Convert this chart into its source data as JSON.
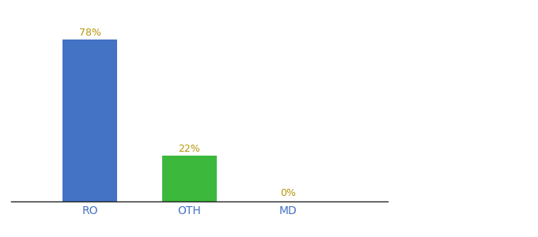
{
  "categories": [
    "RO",
    "OTH",
    "MD"
  ],
  "values": [
    78,
    22,
    0
  ],
  "bar_colors": [
    "#4472C4",
    "#3CB93C",
    "#4472C4"
  ],
  "label_texts": [
    "78%",
    "22%",
    "0%"
  ],
  "label_color": "#b8960c",
  "xlabel_color": "#4472C4",
  "background_color": "#ffffff",
  "ylim": [
    0,
    88
  ],
  "bar_width": 0.55,
  "xlim": [
    -0.3,
    3.5
  ],
  "x_positions": [
    0.5,
    1.5,
    2.5
  ]
}
